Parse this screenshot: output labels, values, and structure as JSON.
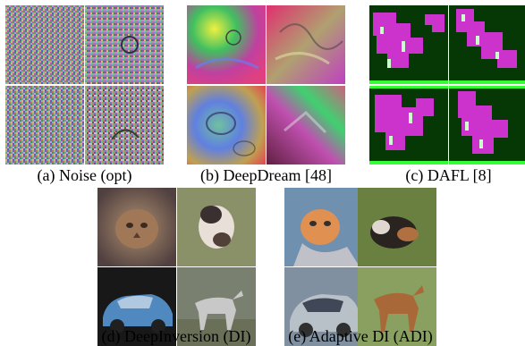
{
  "panels": [
    {
      "id": "a",
      "caption": "(a) Noise (opt)"
    },
    {
      "id": "b",
      "caption": "(b) DeepDream [48]"
    },
    {
      "id": "c",
      "caption": "(c) DAFL [8]"
    },
    {
      "id": "d",
      "caption": "(d) DeepInversion (DI)"
    },
    {
      "id": "e",
      "caption": "(e) Adaptive DI (ADI)"
    }
  ],
  "colors": {
    "dafl_bg": "#063806",
    "dafl_fg": "#cc33cc",
    "dafl_accent": "#33ff33",
    "dafl_light": "#ccffcc"
  }
}
